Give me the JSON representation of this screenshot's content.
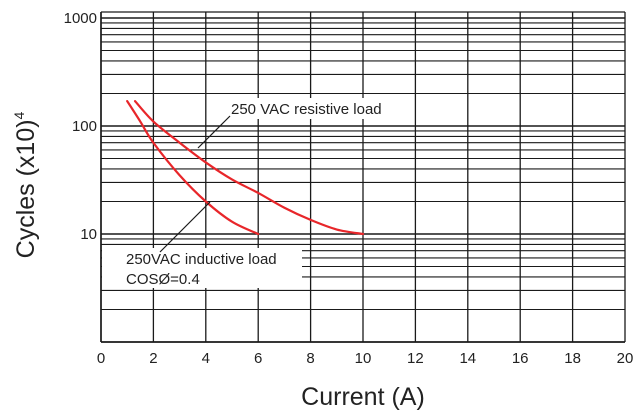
{
  "chart_data": {
    "type": "line",
    "title": "",
    "xlabel": "Current (A)",
    "ylabel": "Cycles (x10)",
    "ylabel_superscript": "4",
    "x_scale": "linear",
    "y_scale": "log",
    "xlim": [
      0,
      20
    ],
    "ylim": [
      1,
      1000
    ],
    "x_ticks": [
      0,
      2,
      4,
      6,
      8,
      10,
      12,
      14,
      16,
      18,
      20
    ],
    "y_ticks": [
      10,
      100,
      1000
    ],
    "grid": true,
    "series": [
      {
        "name": "250 VAC resistive load",
        "color": "#e8262a",
        "x": [
          1.3,
          2,
          3,
          4,
          5,
          6,
          7,
          8,
          9,
          10
        ],
        "y": [
          170,
          110,
          70,
          46,
          32,
          24,
          17.5,
          13.5,
          11,
          10
        ]
      },
      {
        "name": "250VAC inductive load",
        "color": "#e8262a",
        "x": [
          1,
          1.5,
          2,
          3,
          4,
          5,
          6
        ],
        "y": [
          170,
          110,
          70,
          35,
          20,
          13,
          10
        ]
      }
    ],
    "annotations": [
      {
        "text": "250 VAC resistive load"
      },
      {
        "text": "250VAC inductive load"
      },
      {
        "text": "COSØ=0.4"
      }
    ]
  }
}
